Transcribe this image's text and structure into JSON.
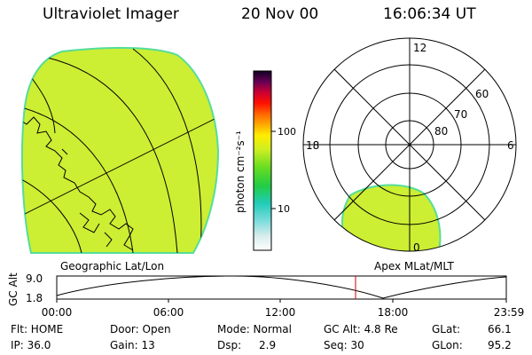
{
  "header": {
    "instrument": "Ultraviolet Imager",
    "date": "20 Nov 00",
    "time": "16:06:34 UT"
  },
  "colors": {
    "image_fill": "#ccee33",
    "image_edge": "#55dd99",
    "line": "#000000",
    "marker": "#cc0000"
  },
  "colorbar": {
    "label": "photon cm⁻²s⁻¹",
    "ticks": [
      "100",
      "10"
    ]
  },
  "geo_panel": {
    "caption": "Geographic Lat/Lon"
  },
  "polar_panel": {
    "caption": "Apex MLat/MLT",
    "mlt_labels": {
      "top": "12",
      "left": "18",
      "right": "6",
      "bottom": "0"
    },
    "lat_labels": [
      "60",
      "70",
      "80"
    ]
  },
  "timeline": {
    "ylabel": "GC Alt",
    "ytick_top": "9.0",
    "ytick_bottom": "1.8",
    "xticks": [
      "00:00",
      "06:00",
      "12:00",
      "18:00",
      "23:59"
    ],
    "marker_time": "16:06"
  },
  "status": {
    "flt": "Flt: HOME",
    "ip": "IP: 36.0",
    "door": "Door: Open",
    "gain": "Gain: 13",
    "mode": "Mode: Normal",
    "dsp_label": "Dsp:",
    "dsp_value": "2.9",
    "gcalt": "GC Alt: 4.8 Re",
    "seq": "Seq: 30",
    "glat_label": "GLat:",
    "glat_value": "66.1",
    "glon_label": "GLon:",
    "glon_value": "95.2"
  }
}
